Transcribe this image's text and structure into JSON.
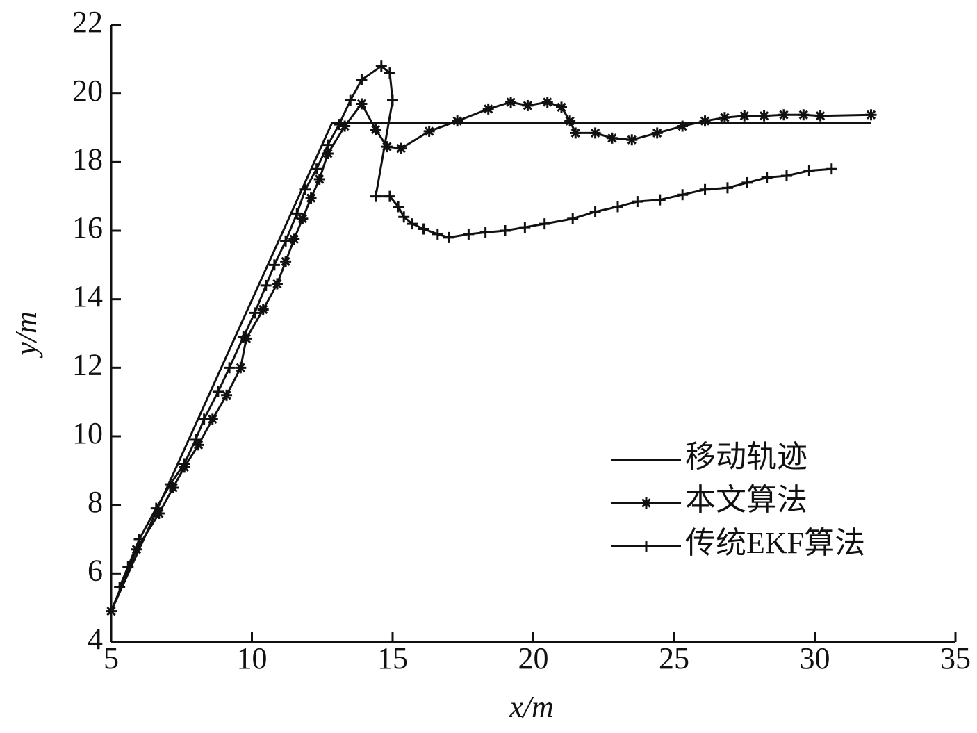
{
  "chart_data": {
    "type": "line",
    "xlabel": "x/m",
    "ylabel": "y/m",
    "xlim": [
      5,
      35
    ],
    "ylim": [
      4,
      22
    ],
    "xticks": [
      5,
      10,
      15,
      20,
      25,
      30,
      35
    ],
    "yticks": [
      4,
      6,
      8,
      10,
      12,
      14,
      16,
      18,
      20,
      22
    ],
    "grid": false,
    "legend": "lower right",
    "series": [
      {
        "name": "移动轨迹",
        "color": "#111111",
        "marker": "none",
        "x": [
          5,
          12.85,
          32
        ],
        "values": [
          4.9,
          19.15,
          19.15
        ]
      },
      {
        "name": "本文算法",
        "color": "#111111",
        "marker": "asterisk",
        "x": [
          5.0,
          5.9,
          6.7,
          7.2,
          7.6,
          8.1,
          8.6,
          9.1,
          9.6,
          9.8,
          10.4,
          10.9,
          11.2,
          11.5,
          11.8,
          12.1,
          12.4,
          12.7,
          13.3,
          13.9,
          14.4,
          14.8,
          15.3,
          16.3,
          17.3,
          18.4,
          19.2,
          19.8,
          20.5,
          21.0,
          21.3,
          21.5,
          22.2,
          22.8,
          23.5,
          24.4,
          25.3,
          26.1,
          26.8,
          27.5,
          28.2,
          28.9,
          29.6,
          30.2,
          32
        ],
        "values": [
          4.9,
          6.7,
          7.75,
          8.5,
          9.1,
          9.75,
          10.5,
          11.2,
          12.0,
          12.85,
          13.7,
          14.45,
          15.1,
          15.75,
          16.35,
          16.95,
          17.5,
          18.25,
          19.05,
          19.7,
          18.95,
          18.45,
          18.4,
          18.9,
          19.2,
          19.55,
          19.75,
          19.65,
          19.75,
          19.6,
          19.2,
          18.85,
          18.85,
          18.7,
          18.65,
          18.85,
          19.05,
          19.2,
          19.3,
          19.35,
          19.35,
          19.38,
          19.38,
          19.35,
          19.38
        ]
      },
      {
        "name": "传统EKF算法",
        "color": "#111111",
        "marker": "plus",
        "x": [
          5.3,
          5.6,
          6.0,
          6.6,
          7.1,
          7.6,
          8.0,
          8.3,
          8.8,
          9.2,
          9.7,
          10.1,
          10.5,
          10.8,
          11.2,
          11.6,
          11.9,
          12.3,
          12.7,
          13.1,
          13.5,
          13.9,
          14.6,
          14.9,
          15.0,
          14.4,
          14.9,
          15.2,
          15.4,
          15.7,
          16.1,
          16.6,
          17.0,
          17.7,
          18.3,
          19.0,
          19.7,
          20.4,
          21.4,
          22.2,
          23.0,
          23.7,
          24.5,
          25.3,
          26.1,
          26.9,
          27.6,
          28.3,
          29.0,
          29.8,
          30.6
        ],
        "values": [
          5.6,
          6.2,
          7.0,
          7.9,
          8.6,
          9.2,
          9.9,
          10.5,
          11.3,
          12.0,
          12.9,
          13.6,
          14.4,
          15.0,
          15.7,
          16.5,
          17.2,
          17.8,
          18.5,
          19.1,
          19.8,
          20.4,
          20.8,
          20.6,
          19.8,
          17.0,
          17.0,
          16.7,
          16.4,
          16.2,
          16.05,
          15.9,
          15.8,
          15.9,
          15.95,
          16.0,
          16.1,
          16.2,
          16.35,
          16.55,
          16.7,
          16.85,
          16.9,
          17.05,
          17.2,
          17.25,
          17.4,
          17.55,
          17.6,
          17.75,
          17.8
        ]
      }
    ]
  }
}
